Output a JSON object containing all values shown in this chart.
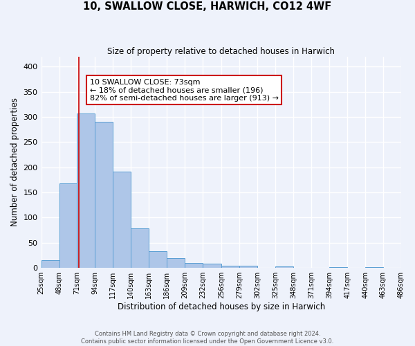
{
  "title": "10, SWALLOW CLOSE, HARWICH, CO12 4WF",
  "subtitle": "Size of property relative to detached houses in Harwich",
  "xlabel": "Distribution of detached houses by size in Harwich",
  "ylabel": "Number of detached properties",
  "bar_color": "#aec6e8",
  "bar_edge_color": "#5a9fd4",
  "background_color": "#eef2fb",
  "grid_color": "#ffffff",
  "vline_color": "#cc0000",
  "vline_x": 73,
  "bin_edges": [
    25,
    48,
    71,
    94,
    117,
    140,
    163,
    186,
    209,
    232,
    256,
    279,
    302,
    325,
    348,
    371,
    394,
    417,
    440,
    463,
    486
  ],
  "bar_heights": [
    16,
    168,
    307,
    290,
    191,
    78,
    33,
    19,
    10,
    9,
    5,
    4,
    0,
    3,
    0,
    0,
    2,
    0,
    2,
    0
  ],
  "tick_labels": [
    "25sqm",
    "48sqm",
    "71sqm",
    "94sqm",
    "117sqm",
    "140sqm",
    "163sqm",
    "186sqm",
    "209sqm",
    "232sqm",
    "256sqm",
    "279sqm",
    "302sqm",
    "325sqm",
    "348sqm",
    "371sqm",
    "394sqm",
    "417sqm",
    "440sqm",
    "463sqm",
    "486sqm"
  ],
  "ylim": [
    0,
    420
  ],
  "yticks": [
    0,
    50,
    100,
    150,
    200,
    250,
    300,
    350,
    400
  ],
  "annotation_text": "10 SWALLOW CLOSE: 73sqm\n← 18% of detached houses are smaller (196)\n82% of semi-detached houses are larger (913) →",
  "annotation_box_color": "#ffffff",
  "annotation_box_edge": "#cc0000",
  "footer_line1": "Contains HM Land Registry data © Crown copyright and database right 2024.",
  "footer_line2": "Contains public sector information licensed under the Open Government Licence v3.0."
}
